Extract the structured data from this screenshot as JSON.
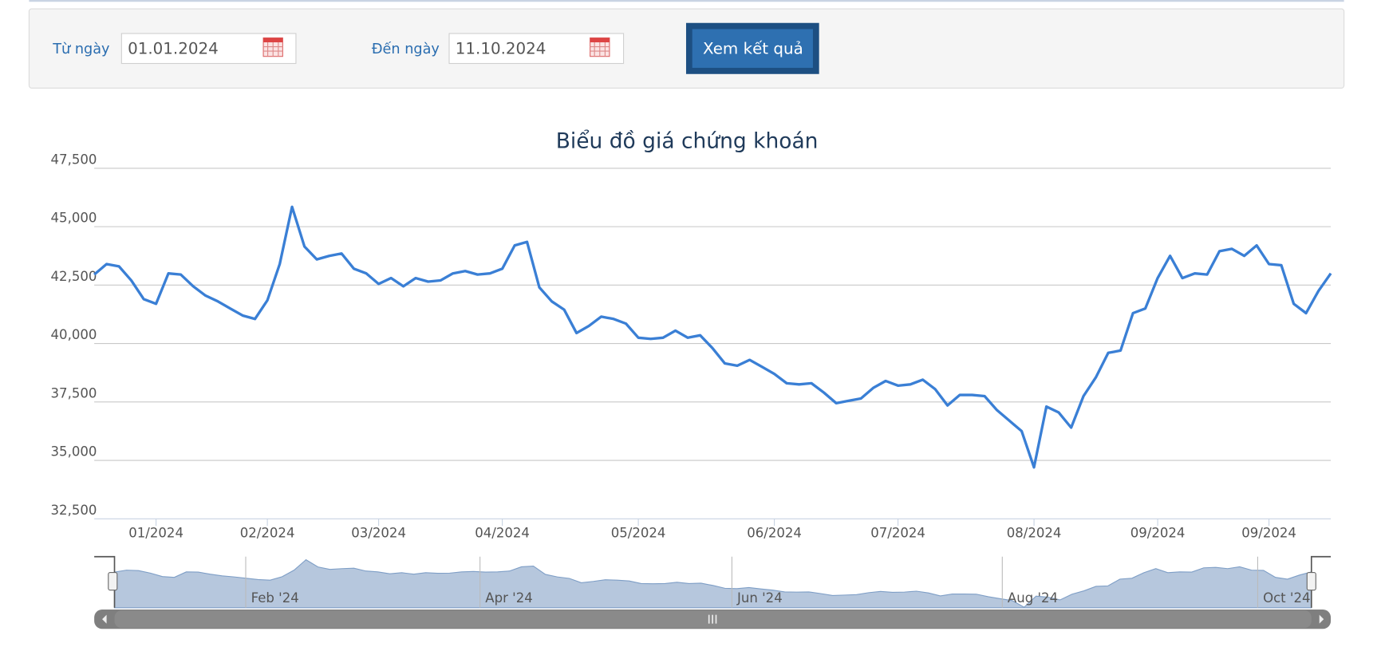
{
  "form": {
    "from_label": "Từ ngày",
    "from_value": "01.01.2024",
    "to_label": "Đến ngày",
    "to_value": "11.10.2024",
    "button": "Xem kết quả"
  },
  "chart_data": {
    "type": "line",
    "title": "Biểu đồ giá chứng khoán",
    "color": "#3a7fd5",
    "grid": true,
    "ylim": [
      32500,
      47500
    ],
    "yticks": [
      {
        "value": 32500,
        "label": "32,500"
      },
      {
        "value": 35000,
        "label": "35,000"
      },
      {
        "value": 37500,
        "label": "37,500"
      },
      {
        "value": 40000,
        "label": "40,000"
      },
      {
        "value": 42500,
        "label": "42,500"
      },
      {
        "value": 45000,
        "label": "45,000"
      },
      {
        "value": 47500,
        "label": "47,500"
      }
    ],
    "categories": [
      null,
      null,
      null,
      null,
      null,
      "01/2024",
      null,
      null,
      null,
      null,
      null,
      null,
      null,
      null,
      "02/2024",
      null,
      null,
      null,
      null,
      null,
      null,
      null,
      null,
      "03/2024",
      null,
      null,
      null,
      null,
      null,
      null,
      null,
      null,
      null,
      "04/2024",
      null,
      null,
      null,
      null,
      null,
      null,
      null,
      null,
      null,
      null,
      "05/2024",
      null,
      null,
      null,
      null,
      null,
      null,
      null,
      null,
      null,
      null,
      "06/2024",
      null,
      null,
      null,
      null,
      null,
      null,
      null,
      null,
      null,
      "07/2024",
      null,
      null,
      null,
      null,
      null,
      null,
      null,
      null,
      null,
      null,
      "08/2024",
      null,
      null,
      null,
      null,
      null,
      null,
      null,
      null,
      null,
      "09/2024",
      null,
      null,
      null,
      null,
      null,
      null,
      null,
      null,
      "09/2024",
      null,
      null,
      null,
      null,
      null
    ],
    "values": [
      42950,
      43400,
      43300,
      42700,
      41900,
      41700,
      43000,
      42950,
      42450,
      42050,
      41800,
      41500,
      41200,
      41050,
      41850,
      43400,
      45850,
      44150,
      43600,
      43750,
      43850,
      43200,
      43000,
      42550,
      42800,
      42450,
      42800,
      42650,
      42700,
      43000,
      43100,
      42950,
      43000,
      43200,
      44200,
      44350,
      42400,
      41800,
      41450,
      40450,
      40750,
      41150,
      41050,
      40850,
      40250,
      40200,
      40250,
      40550,
      40250,
      40350,
      39800,
      39150,
      39050,
      39300,
      39000,
      38700,
      38300,
      38250,
      38300,
      37900,
      37450,
      37550,
      37650,
      38100,
      38400,
      38200,
      38250,
      38450,
      38050,
      37350,
      37800,
      37800,
      37750,
      37150,
      36700,
      36250,
      34700,
      37300,
      37050,
      36400,
      37750,
      38550,
      39600,
      39700,
      41300,
      41500,
      42800,
      43750,
      42800,
      43000,
      42950,
      43950,
      44050,
      43750,
      44200,
      43400,
      43350,
      41700,
      41300,
      42250,
      43000
    ],
    "navigator_labels": [
      "Feb '24",
      "Apr '24",
      "Jun '24",
      "Aug '24",
      "Oct '24"
    ]
  }
}
